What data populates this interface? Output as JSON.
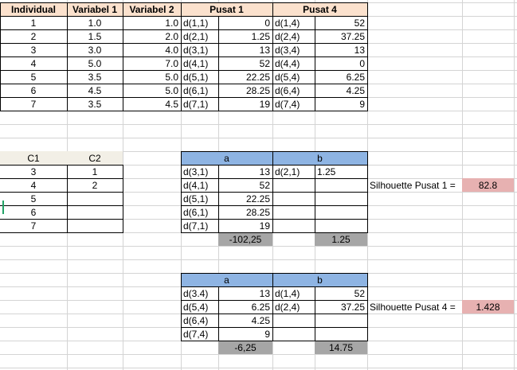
{
  "colors": {
    "header_fill": "#fbe1cd",
    "blue_fill": "#8eb4e3",
    "grey_fill": "#a6a6a6",
    "pink_fill": "#e7b1b1",
    "beige_fill": "#f2efe6",
    "selection": "#21a366"
  },
  "main_table": {
    "headers": [
      "Individual",
      "Variabel 1",
      "Variabel 2",
      "Pusat 1",
      "Pusat 4"
    ],
    "rows": [
      [
        "1",
        "1.0",
        "1.0",
        "d(1,1)",
        "0",
        "d(1,4)",
        "52"
      ],
      [
        "2",
        "1.5",
        "2.0",
        "d(2,1)",
        "1.25",
        "d(2,4)",
        "37.25"
      ],
      [
        "3",
        "3.0",
        "4.0",
        "d(3,1)",
        "13",
        "d(3,4)",
        "13"
      ],
      [
        "4",
        "5.0",
        "7.0",
        "d(4,1)",
        "52",
        "d(4,4)",
        "0"
      ],
      [
        "5",
        "3.5",
        "5.0",
        "d(5,1)",
        "22.25",
        "d(5,4)",
        "6.25"
      ],
      [
        "6",
        "4.5",
        "5.0",
        "d(6,1)",
        "28.25",
        "d(6,4)",
        "4.25"
      ],
      [
        "7",
        "3.5",
        "4.5",
        "d(7,1)",
        "19",
        "d(7,4)",
        "9"
      ]
    ]
  },
  "cluster_table": {
    "headers": [
      "C1",
      "C2"
    ],
    "rows": [
      [
        "3",
        "1"
      ],
      [
        "4",
        "2"
      ],
      [
        "5",
        ""
      ],
      [
        "6",
        ""
      ],
      [
        "7",
        ""
      ]
    ]
  },
  "block1": {
    "a_label": "a",
    "b_label": "b",
    "rows": [
      [
        "d(3,1)",
        "13",
        "d(2,1)",
        "1.25"
      ],
      [
        "d(4,1)",
        "52",
        "",
        ""
      ],
      [
        "d(5,1)",
        "22.25",
        "",
        ""
      ],
      [
        "d(6,1)",
        "28.25",
        "",
        ""
      ],
      [
        "d(7,1)",
        "19",
        "",
        ""
      ]
    ],
    "total_a": "-102,25",
    "total_b": "1.25",
    "silhouette_label": "Silhouette Pusat 1 =",
    "silhouette_value": "82.8"
  },
  "block2": {
    "a_label": "a",
    "b_label": "b",
    "rows": [
      [
        "d(3.4)",
        "13",
        "d(1,4)",
        "52"
      ],
      [
        "d(5,4)",
        "6.25",
        "d(2,4)",
        "37.25"
      ],
      [
        "d(6,4)",
        "4.25",
        "",
        ""
      ],
      [
        "d(7,4)",
        "9",
        "",
        ""
      ]
    ],
    "total_a": "-6,25",
    "total_b": "14.75",
    "silhouette_label": "Silhouette Pusat 4 =",
    "silhouette_value": "1.428"
  }
}
